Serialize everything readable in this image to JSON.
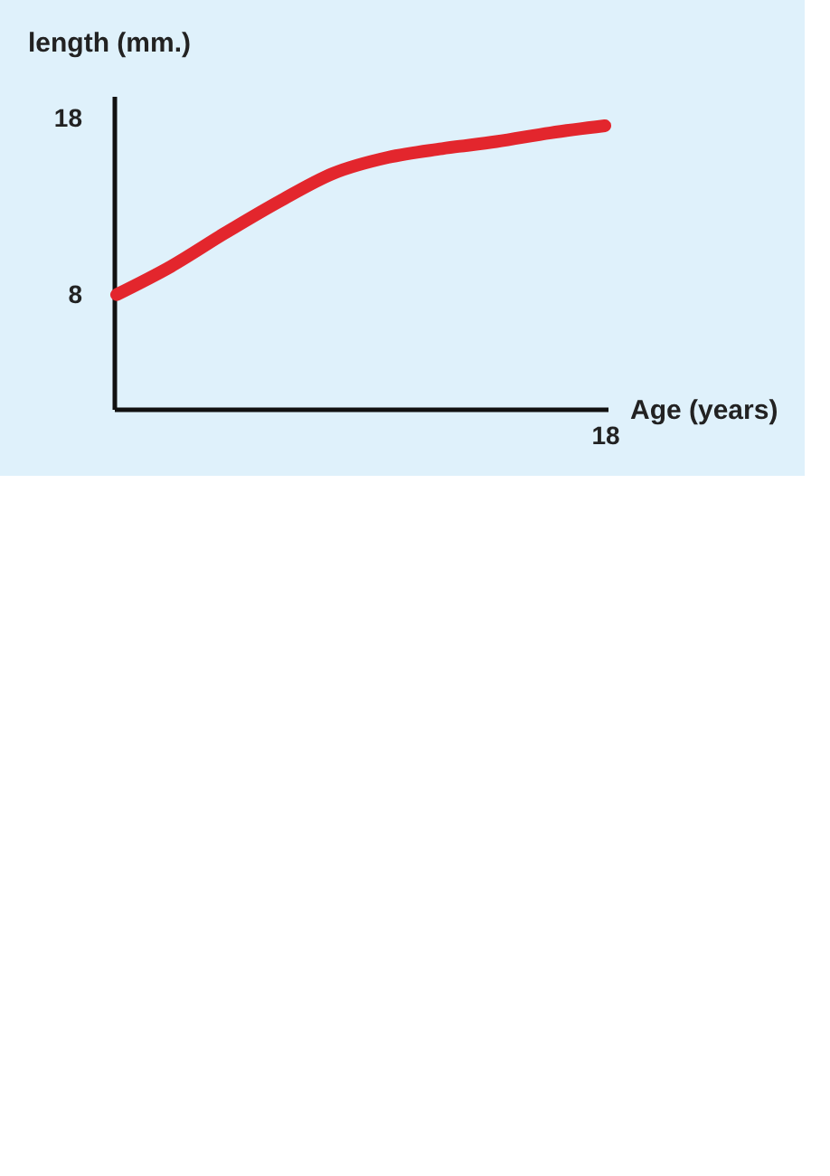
{
  "chart_data": {
    "type": "line",
    "xlabel": "Age (years)",
    "ylabel": "length (mm.)",
    "categories": [
      null,
      null,
      null,
      null,
      null,
      null,
      null,
      null,
      null,
      "18"
    ],
    "series": [
      {
        "color": "#e3262d",
        "values": [
          8,
          9.6,
          11.5,
          13.3,
          14.9,
          15.8,
          16.3,
          16.7,
          17.2,
          17.6
        ]
      }
    ],
    "ylim": [
      1.5,
      19.3
    ],
    "yticks": [
      8,
      18
    ]
  }
}
